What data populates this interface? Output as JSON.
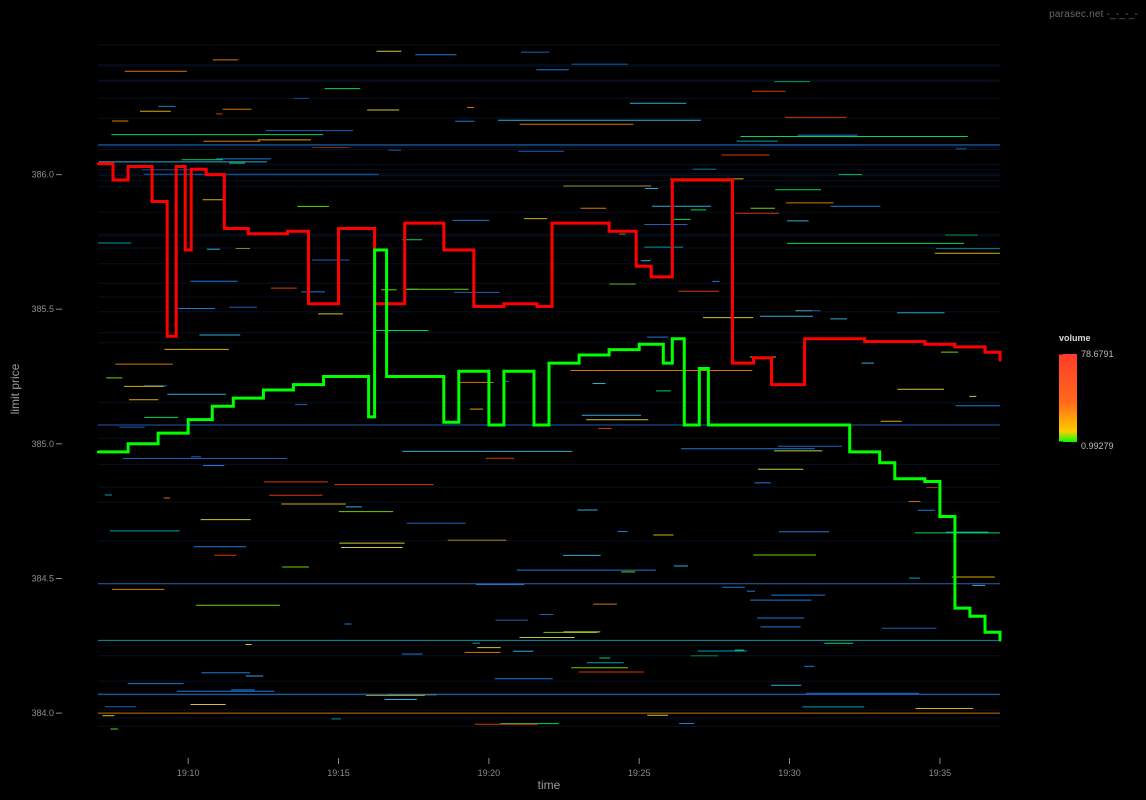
{
  "watermark": "parasec.net -_-_-_-",
  "chart_data": {
    "type": "line",
    "xlabel": "time",
    "ylabel": "limit price",
    "x_ticks": [
      "19:10",
      "19:15",
      "19:20",
      "19:25",
      "19:30",
      "19:35"
    ],
    "y_ticks": [
      "384.0",
      "384.5",
      "385.0",
      "385.5",
      "386.0"
    ],
    "xlim": [
      "19:07",
      "19:37"
    ],
    "ylim": [
      383.9,
      386.5
    ],
    "grid": false,
    "legend": {
      "title": "volume",
      "max_label": "78.6791",
      "min_label": "0.99279",
      "placement": "right",
      "gradient": [
        "#ff3a2a",
        "#ff6a1a",
        "#ffcc00",
        "#00ff00"
      ]
    },
    "series": [
      {
        "role": "ask",
        "color": "#ff0000",
        "points": [
          [
            "19:07",
            386.04
          ],
          [
            "19:07.5",
            385.98
          ],
          [
            "19:08",
            386.03
          ],
          [
            "19:08.8",
            385.9
          ],
          [
            "19:09.3",
            385.4
          ],
          [
            "19:09.6",
            386.03
          ],
          [
            "19:09.9",
            385.72
          ],
          [
            "19:10.1",
            386.02
          ],
          [
            "19:10.6",
            386.0
          ],
          [
            "19:11.2",
            385.8
          ],
          [
            "19:12",
            385.78
          ],
          [
            "19:13.3",
            385.79
          ],
          [
            "19:14",
            385.52
          ],
          [
            "19:15",
            385.8
          ],
          [
            "19:16.2",
            385.52
          ],
          [
            "19:17.2",
            385.82
          ],
          [
            "19:18.5",
            385.72
          ],
          [
            "19:19.5",
            385.51
          ],
          [
            "19:20.5",
            385.52
          ],
          [
            "19:21.6",
            385.51
          ],
          [
            "19:22.1",
            385.82
          ],
          [
            "19:23",
            385.82
          ],
          [
            "19:24",
            385.79
          ],
          [
            "19:24.9",
            385.66
          ],
          [
            "19:25.4",
            385.62
          ],
          [
            "19:26.1",
            385.98
          ],
          [
            "19:27",
            385.98
          ],
          [
            "19:28.1",
            385.3
          ],
          [
            "19:28.8",
            385.32
          ],
          [
            "19:29.4",
            385.22
          ],
          [
            "19:30.5",
            385.39
          ],
          [
            "19:31.5",
            385.39
          ],
          [
            "19:32.5",
            385.38
          ],
          [
            "19:33.6",
            385.38
          ],
          [
            "19:34.5",
            385.37
          ],
          [
            "19:35.5",
            385.36
          ],
          [
            "19:36.5",
            385.34
          ],
          [
            "19:37",
            385.31
          ]
        ]
      },
      {
        "role": "bid",
        "color": "#00ff00",
        "points": [
          [
            "19:07",
            384.97
          ],
          [
            "19:08",
            385.0
          ],
          [
            "19:09",
            385.04
          ],
          [
            "19:10",
            385.09
          ],
          [
            "19:10.8",
            385.14
          ],
          [
            "19:11.5",
            385.17
          ],
          [
            "19:12.5",
            385.2
          ],
          [
            "19:13.5",
            385.22
          ],
          [
            "19:14.5",
            385.25
          ],
          [
            "19:15.2",
            385.25
          ],
          [
            "19:16",
            385.1
          ],
          [
            "19:16.2",
            385.72
          ],
          [
            "19:16.6",
            385.25
          ],
          [
            "19:17.5",
            385.25
          ],
          [
            "19:18.5",
            385.08
          ],
          [
            "19:19",
            385.27
          ],
          [
            "19:20",
            385.07
          ],
          [
            "19:20.5",
            385.27
          ],
          [
            "19:21.5",
            385.07
          ],
          [
            "19:22",
            385.3
          ],
          [
            "19:23",
            385.33
          ],
          [
            "19:24",
            385.35
          ],
          [
            "19:25",
            385.37
          ],
          [
            "19:25.8",
            385.3
          ],
          [
            "19:26.1",
            385.39
          ],
          [
            "19:26.5",
            385.07
          ],
          [
            "19:27",
            385.28
          ],
          [
            "19:27.3",
            385.07
          ],
          [
            "19:28",
            385.07
          ],
          [
            "19:30",
            385.07
          ],
          [
            "19:31.5",
            385.07
          ],
          [
            "19:32",
            384.97
          ],
          [
            "19:33",
            384.93
          ],
          [
            "19:33.5",
            384.87
          ],
          [
            "19:34.5",
            384.86
          ],
          [
            "19:35",
            384.73
          ],
          [
            "19:35.5",
            384.39
          ],
          [
            "19:36",
            384.36
          ],
          [
            "19:36.5",
            384.3
          ],
          [
            "19:37",
            384.27
          ]
        ]
      }
    ]
  }
}
